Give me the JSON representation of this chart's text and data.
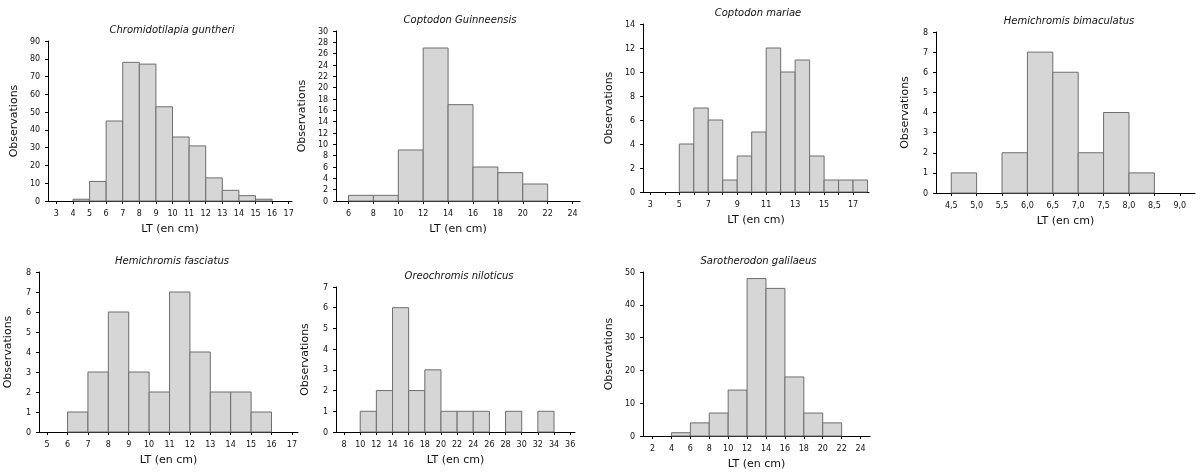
{
  "chart_data": [
    {
      "type": "histogram",
      "title": "Chromidotilapia guntheri",
      "xlabel": "LT (en cm)",
      "ylabel": "Observations",
      "color": "#d6d6d6",
      "bins": [
        4,
        5,
        6,
        7,
        8,
        9,
        10,
        11,
        12,
        13,
        14,
        15,
        16
      ],
      "values": [
        1,
        11,
        45,
        78,
        77,
        53,
        36,
        31,
        13,
        6,
        3,
        1
      ],
      "xlim": [
        2.5,
        17.2
      ],
      "xticks": [
        3,
        4,
        5,
        6,
        7,
        8,
        9,
        10,
        11,
        12,
        13,
        14,
        15,
        16,
        17
      ],
      "ylim": [
        0,
        90
      ],
      "yticks": [
        0,
        10,
        20,
        30,
        40,
        50,
        60,
        70,
        80,
        90
      ]
    },
    {
      "type": "histogram",
      "title": "Coptodon Guinneensis",
      "xlabel": "LT (en cm)",
      "ylabel": "Observations",
      "color": "#d6d6d6",
      "bins": [
        6,
        8,
        10,
        12,
        14,
        16,
        18,
        20,
        22
      ],
      "values": [
        1,
        1,
        9,
        27,
        17,
        6,
        5,
        3
      ],
      "xlim": [
        5,
        24.6
      ],
      "xticks": [
        6,
        8,
        10,
        12,
        14,
        16,
        18,
        20,
        22,
        24
      ],
      "ylim": [
        0,
        30
      ],
      "yticks": [
        0,
        2,
        4,
        6,
        8,
        10,
        12,
        14,
        16,
        18,
        20,
        22,
        24,
        26,
        28,
        30
      ]
    },
    {
      "type": "histogram",
      "title": "Coptodon mariae",
      "xlabel": "LT (en cm)",
      "ylabel": "Observations",
      "color": "#d6d6d6",
      "bins": [
        5,
        6,
        7,
        8,
        9,
        10,
        11,
        12,
        13,
        14,
        15,
        16,
        17,
        18
      ],
      "values": [
        4,
        7,
        6,
        1,
        3,
        5,
        12,
        10,
        11,
        3,
        1,
        1,
        1
      ],
      "xlim": [
        2.5,
        18.1
      ],
      "xticks": [
        3,
        {
          "value": 4,
          "label": null
        },
        5,
        {
          "value": 6,
          "label": null
        },
        7,
        {
          "value": 8,
          "label": null
        },
        9,
        {
          "value": 10,
          "label": null
        },
        11,
        {
          "value": 12,
          "label": null
        },
        13,
        {
          "value": 14,
          "label": null
        },
        15,
        {
          "value": 16,
          "label": null
        },
        17
      ],
      "ylim": [
        0,
        14
      ],
      "yticks": [
        0,
        2,
        4,
        6,
        8,
        10,
        12,
        14
      ]
    },
    {
      "type": "histogram",
      "title": "Hemichromis bimaculatus",
      "xlabel": "LT (en cm)",
      "ylabel": "Observations",
      "color": "#d6d6d6",
      "bins": [
        4.5,
        5,
        5.5,
        6,
        6.5,
        7,
        7.5,
        8,
        8.5
      ],
      "values": [
        1,
        0,
        2,
        7,
        6,
        2,
        4,
        1
      ],
      "xlim": [
        4.2,
        9.3
      ],
      "xticks": [
        {
          "value": 4.5,
          "label": "4,5"
        },
        {
          "value": 5,
          "label": "5,0"
        },
        {
          "value": 5.5,
          "label": "5,5"
        },
        {
          "value": 6,
          "label": "6,0"
        },
        {
          "value": 6.5,
          "label": "6,5"
        },
        {
          "value": 7,
          "label": "7,0"
        },
        {
          "value": 7.5,
          "label": "7,5"
        },
        {
          "value": 8,
          "label": "8,0"
        },
        {
          "value": 8.5,
          "label": "8,5"
        },
        {
          "value": 9,
          "label": "9,0"
        }
      ],
      "ylim": [
        0,
        8
      ],
      "yticks": [
        0,
        1,
        2,
        3,
        4,
        5,
        6,
        7,
        8
      ]
    },
    {
      "type": "histogram",
      "title": "Hemichromis fasciatus",
      "xlabel": "LT (en cm)",
      "ylabel": "Observations",
      "color": "#d6d6d6",
      "bins": [
        6,
        7,
        8,
        9,
        10,
        11,
        12,
        13,
        14,
        15,
        16
      ],
      "values": [
        1,
        3,
        6,
        3,
        2,
        7,
        4,
        2,
        2,
        1
      ],
      "xlim": [
        4.6,
        17.3
      ],
      "xticks": [
        5,
        6,
        7,
        8,
        9,
        10,
        11,
        12,
        13,
        14,
        15,
        16,
        17
      ],
      "ylim": [
        0,
        8
      ],
      "yticks": [
        0,
        1,
        2,
        3,
        4,
        5,
        6,
        7,
        8
      ]
    },
    {
      "type": "histogram",
      "title": "Oreochromis niloticus",
      "xlabel": "LT (en cm)",
      "ylabel": "Observations",
      "color": "#d6d6d6",
      "bins": [
        10,
        12,
        14,
        16,
        18,
        20,
        22,
        24,
        26,
        28,
        30,
        32,
        34
      ],
      "values": [
        1,
        2,
        6,
        2,
        3,
        1,
        1,
        1,
        0,
        1,
        0,
        1
      ],
      "xlim": [
        7,
        36.6
      ],
      "xticks": [
        8,
        10,
        12,
        14,
        16,
        18,
        20,
        22,
        24,
        26,
        28,
        30,
        32,
        34,
        36
      ],
      "ylim": [
        0,
        7
      ],
      "yticks": [
        0,
        1,
        2,
        3,
        4,
        5,
        6,
        7
      ]
    },
    {
      "type": "histogram",
      "title": "Sarotherodon galilaeus",
      "xlabel": "LT (en cm)",
      "ylabel": "Observations",
      "color": "#d6d6d6",
      "bins": [
        4,
        6,
        8,
        10,
        12,
        14,
        16,
        18,
        20,
        22
      ],
      "values": [
        1,
        4,
        7,
        14,
        48,
        45,
        18,
        7,
        4
      ],
      "xlim": [
        1,
        25
      ],
      "xticks": [
        2,
        4,
        6,
        8,
        10,
        12,
        14,
        16,
        18,
        20,
        22,
        24
      ],
      "ylim": [
        0,
        50
      ],
      "yticks": [
        0,
        10,
        20,
        30,
        40,
        50
      ]
    }
  ]
}
